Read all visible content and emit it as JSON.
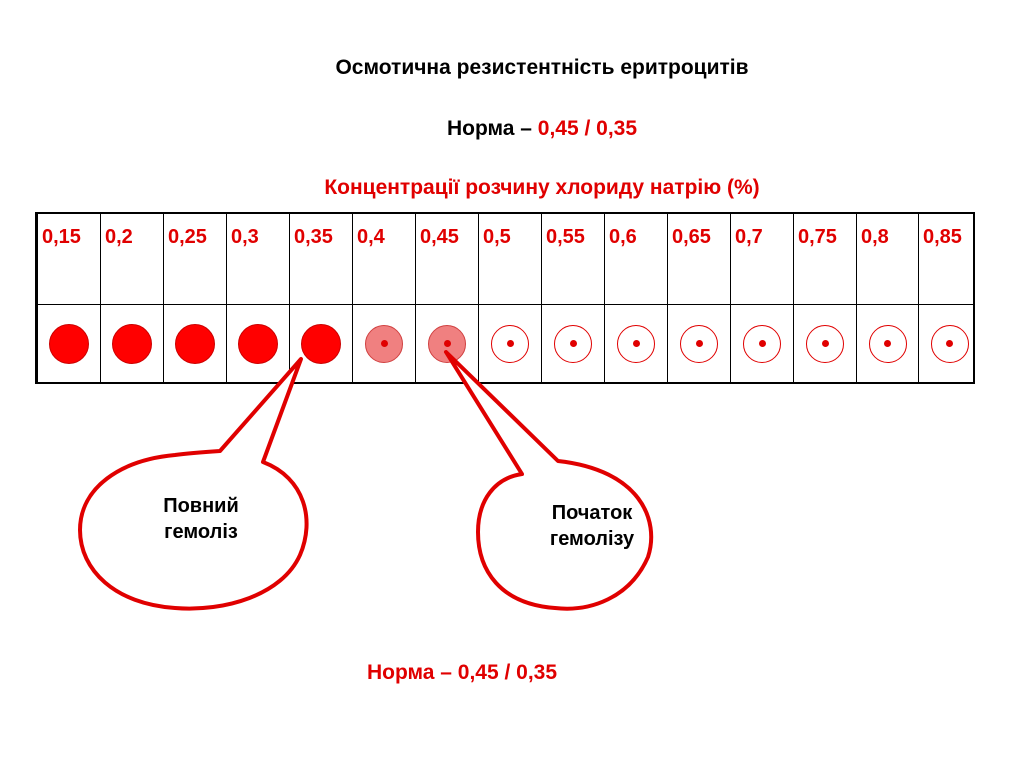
{
  "title": "Осмотична резистентність еритроцитів",
  "norma_top": {
    "prefix": "Норма – ",
    "values": "0,45 / 0,35"
  },
  "concentration_header": "Концентрації розчину хлориду натрію (%)",
  "columns": [
    {
      "label": "0,15",
      "state": "full"
    },
    {
      "label": "0,2",
      "state": "full"
    },
    {
      "label": "0,25",
      "state": "full"
    },
    {
      "label": "0,3",
      "state": "full"
    },
    {
      "label": "0,35",
      "state": "full"
    },
    {
      "label": "0,4",
      "state": "partial"
    },
    {
      "label": "0,45",
      "state": "partial"
    },
    {
      "label": "0,5",
      "state": "intact"
    },
    {
      "label": "0,55",
      "state": "intact"
    },
    {
      "label": "0,6",
      "state": "intact"
    },
    {
      "label": "0,65",
      "state": "intact"
    },
    {
      "label": "0,7",
      "state": "intact"
    },
    {
      "label": "0,75",
      "state": "intact"
    },
    {
      "label": "0,8",
      "state": "intact"
    },
    {
      "label": "0,85",
      "state": "intact"
    }
  ],
  "callouts": {
    "full_hemolysis": {
      "line1": "Повний",
      "line2": "гемоліз"
    },
    "start_hemolysis": {
      "line1": "Початок",
      "line2": "гемолізу"
    }
  },
  "norma_bottom": "Норма – 0,45 / 0,35",
  "colors": {
    "accent": "#e00000",
    "full_dot": "#ff0000",
    "partial_dot": "#f08080"
  }
}
